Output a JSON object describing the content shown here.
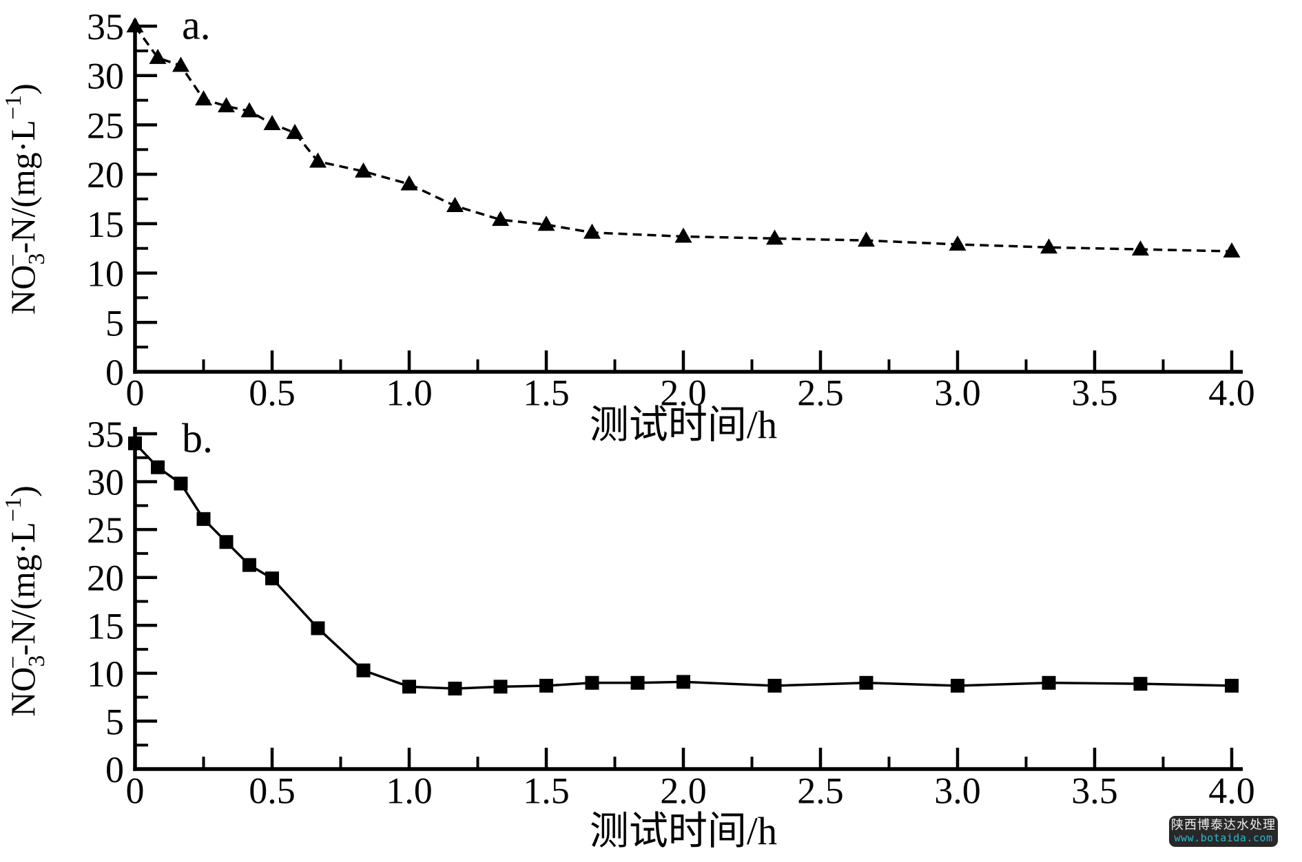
{
  "figure": {
    "background": "#ffffff",
    "ink_color": "#000000"
  },
  "watermark": {
    "line1": "陕西博泰达水处理",
    "line2": "www.botaida.com",
    "bg_color": "#282828",
    "line1_color": "#ededed",
    "line2_color": "#2cb8cc"
  },
  "chart_data": [
    {
      "id": "a",
      "type": "line",
      "panel_label": "a.",
      "marker": "triangle",
      "line_style": "dashed",
      "grid": false,
      "legend": null,
      "xlabel": "测试时间/h",
      "ylabel": "NO₃⁻-N/(mg·L⁻¹)",
      "ylabel_parts": [
        {
          "t": "NO"
        },
        {
          "t": "3",
          "pos": "sub"
        },
        {
          "t": "−",
          "pos": "sup",
          "stack": true
        },
        {
          "t": "-N/(mg·L"
        },
        {
          "t": "−1",
          "pos": "sup"
        },
        {
          "t": ")"
        }
      ],
      "xlim": [
        0,
        4
      ],
      "ylim": [
        0,
        35
      ],
      "x_major_ticks": [
        0,
        0.5,
        1.0,
        1.5,
        2.0,
        2.5,
        3.0,
        3.5,
        4.0
      ],
      "x_tick_labels": [
        "0",
        "0.5",
        "1.0",
        "1.5",
        "2.0",
        "2.5",
        "3.0",
        "3.5",
        "4.0"
      ],
      "x_minor_step": 0.25,
      "y_major_ticks": [
        0,
        5,
        10,
        15,
        20,
        25,
        30,
        35
      ],
      "y_tick_labels": [
        "0",
        "5",
        "10",
        "15",
        "20",
        "25",
        "30",
        "35"
      ],
      "y_minor_step": 2.5,
      "x": [
        0,
        0.083,
        0.167,
        0.25,
        0.333,
        0.417,
        0.5,
        0.583,
        0.667,
        0.833,
        1.0,
        1.167,
        1.333,
        1.5,
        1.667,
        2.0,
        2.333,
        2.667,
        3.0,
        3.333,
        3.667,
        4.0
      ],
      "y": [
        35.0,
        31.8,
        31.0,
        27.6,
        26.9,
        26.4,
        25.1,
        24.2,
        21.3,
        20.3,
        19.0,
        16.8,
        15.4,
        14.9,
        14.1,
        13.7,
        13.5,
        13.3,
        12.9,
        12.6,
        12.4,
        12.2
      ]
    },
    {
      "id": "b",
      "type": "line",
      "panel_label": "b.",
      "marker": "square",
      "line_style": "solid",
      "grid": false,
      "legend": null,
      "xlabel": "测试时间/h",
      "ylabel": "NO₃⁻-N/(mg·L⁻¹)",
      "ylabel_parts": [
        {
          "t": "NO"
        },
        {
          "t": "3",
          "pos": "sub"
        },
        {
          "t": "−",
          "pos": "sup",
          "stack": true
        },
        {
          "t": "-N/(mg·L"
        },
        {
          "t": "−1",
          "pos": "sup"
        },
        {
          "t": ")"
        }
      ],
      "xlim": [
        0,
        4
      ],
      "ylim": [
        0,
        35
      ],
      "x_major_ticks": [
        0,
        0.5,
        1.0,
        1.5,
        2.0,
        2.5,
        3.0,
        3.5,
        4.0
      ],
      "x_tick_labels": [
        "0",
        "0.5",
        "1.0",
        "1.5",
        "2.0",
        "2.5",
        "3.0",
        "3.5",
        "4.0"
      ],
      "x_minor_step": 0.25,
      "y_major_ticks": [
        0,
        5,
        10,
        15,
        20,
        25,
        30,
        35
      ],
      "y_tick_labels": [
        "0",
        "5",
        "10",
        "15",
        "20",
        "25",
        "30",
        "35"
      ],
      "y_minor_step": 2.5,
      "x": [
        0,
        0.083,
        0.167,
        0.25,
        0.333,
        0.417,
        0.5,
        0.667,
        0.833,
        1.0,
        1.167,
        1.333,
        1.5,
        1.667,
        1.833,
        2.0,
        2.333,
        2.667,
        3.0,
        3.333,
        3.667,
        4.0
      ],
      "y": [
        34.0,
        31.5,
        29.8,
        26.1,
        23.7,
        21.3,
        19.9,
        14.7,
        10.3,
        8.6,
        8.4,
        8.6,
        8.7,
        9.0,
        9.0,
        9.1,
        8.7,
        9.0,
        8.7,
        9.0,
        8.9,
        8.7
      ]
    }
  ]
}
